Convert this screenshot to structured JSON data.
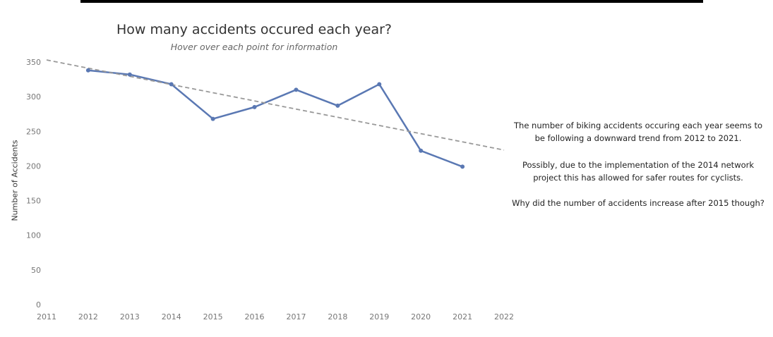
{
  "chart_data": {
    "type": "line",
    "title": "How many accidents occured each year?",
    "subtitle": "Hover over each point for information",
    "xlabel": "",
    "ylabel": "Number of Accidents",
    "xlim": [
      2011,
      2022
    ],
    "ylim": [
      0,
      350
    ],
    "x_ticks": [
      2011,
      2012,
      2013,
      2014,
      2015,
      2016,
      2017,
      2018,
      2019,
      2020,
      2021,
      2022
    ],
    "y_ticks": [
      0,
      50,
      100,
      150,
      200,
      250,
      300,
      350
    ],
    "grid": false,
    "x": [
      2012,
      2013,
      2014,
      2015,
      2016,
      2017,
      2018,
      2019,
      2020,
      2021
    ],
    "values": [
      338,
      332,
      318,
      268,
      285,
      310,
      287,
      318,
      222,
      199
    ],
    "trend_line": {
      "style": "dashed",
      "x": [
        2011,
        2022
      ],
      "y": [
        353,
        223
      ]
    },
    "colors": {
      "series": "#5a78b3",
      "trend": "#999999"
    }
  },
  "annotations": [
    "The number of biking accidents occuring each year seems to be following a downward trend from 2012 to 2021.",
    "Possibly, due to the implementation of the 2014 network project this has allowed for safer routes for cyclists.",
    "Why did the number of accidents increase after 2015 though?"
  ]
}
